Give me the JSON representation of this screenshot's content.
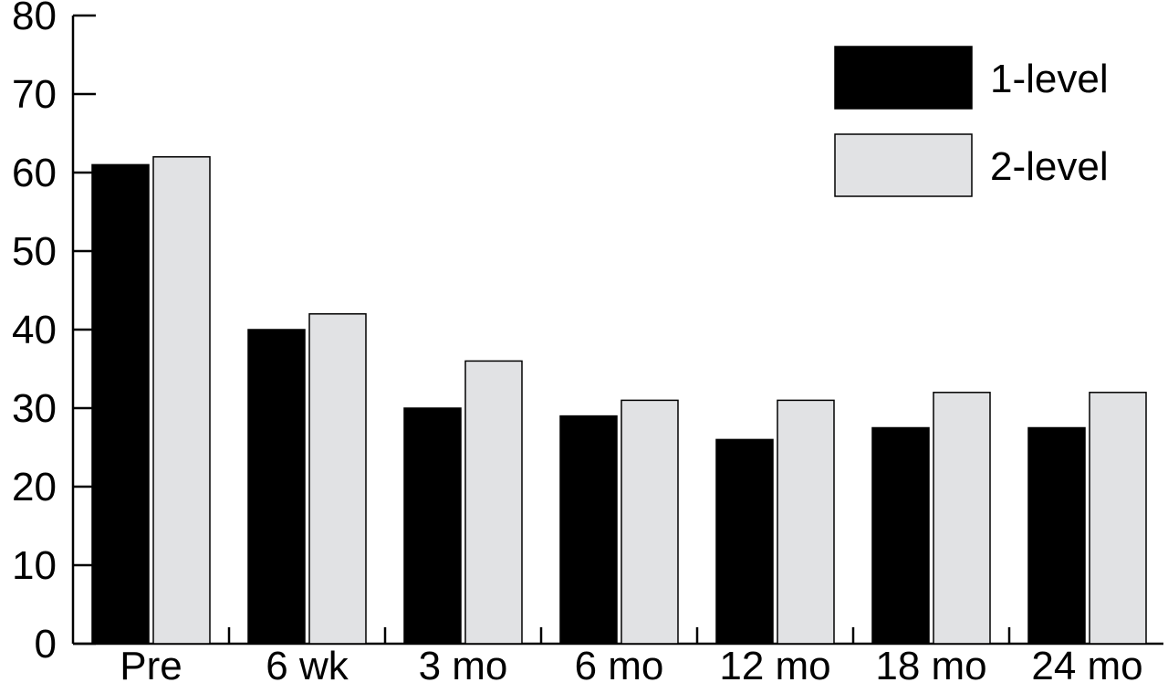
{
  "chart_data": {
    "type": "bar",
    "categories": [
      "Pre",
      "6 wk",
      "3 mo",
      "6 mo",
      "12 mo",
      "18 mo",
      "24 mo"
    ],
    "series": [
      {
        "name": "1-level",
        "color": "#000000",
        "values": [
          61,
          40,
          30,
          29,
          26,
          27.5,
          27.5
        ]
      },
      {
        "name": "2-level",
        "color": "#e1e2e4",
        "values": [
          62,
          42,
          36,
          31,
          31,
          32,
          32
        ]
      }
    ],
    "title": "",
    "xlabel": "",
    "ylabel": "",
    "ylim": [
      0,
      80
    ],
    "yticks": [
      "0",
      "10",
      "20",
      "30",
      "40",
      "50",
      "60",
      "70",
      "80"
    ],
    "grid": false,
    "legend_position": "top-right"
  }
}
